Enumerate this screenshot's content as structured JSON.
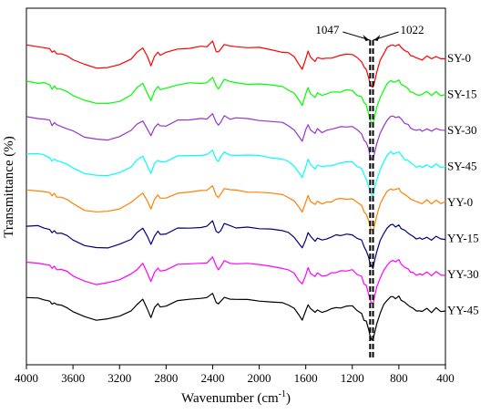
{
  "chart_data": {
    "type": "line",
    "title": "",
    "xlabel_main": "Wavenumber (cm",
    "xlabel_sup": "-1",
    "xlabel_close": ")",
    "ylabel": "Transmittance (%)",
    "xlim": [
      4000,
      400
    ],
    "x_reversed": true,
    "xticks": [
      4000,
      3600,
      3200,
      2800,
      2400,
      2000,
      1600,
      1200,
      800,
      400
    ],
    "xtick_labels": [
      "4000",
      "3600",
      "3200",
      "2800",
      "2400",
      "2000",
      "1600",
      "1200",
      "800",
      "400"
    ],
    "grid": false,
    "legend": "inline-right",
    "annotations": [
      {
        "text": "1047",
        "x": 1047,
        "style": "dashed-vertical"
      },
      {
        "text": "1022",
        "x": 1022,
        "style": "dashed-vertical"
      }
    ],
    "series": [
      {
        "name": "SY-0",
        "color": "#ff0000",
        "offset": 0
      },
      {
        "name": "SY-15",
        "color": "#00ff00",
        "offset": 1
      },
      {
        "name": "SY-30",
        "color": "#9933cc",
        "offset": 2
      },
      {
        "name": "SY-45",
        "color": "#00ffff",
        "offset": 3
      },
      {
        "name": "YY-0",
        "color": "#ff8000",
        "offset": 4
      },
      {
        "name": "YY-15",
        "color": "#000080",
        "offset": 5
      },
      {
        "name": "YY-30",
        "color": "#ff00ff",
        "offset": 6
      },
      {
        "name": "YY-45",
        "color": "#000000",
        "offset": 7
      }
    ],
    "spectrum_profile": {
      "x": [
        4000,
        3900,
        3850,
        3800,
        3780,
        3760,
        3740,
        3700,
        3650,
        3600,
        3500,
        3400,
        3300,
        3200,
        3100,
        3050,
        3000,
        2960,
        2930,
        2900,
        2870,
        2850,
        2800,
        2700,
        2600,
        2500,
        2450,
        2400,
        2370,
        2350,
        2330,
        2300,
        2250,
        2200,
        2100,
        2000,
        1900,
        1800,
        1750,
        1700,
        1660,
        1630,
        1600,
        1580,
        1560,
        1520,
        1500,
        1460,
        1420,
        1380,
        1340,
        1300,
        1250,
        1200,
        1160,
        1120,
        1100,
        1080,
        1060,
        1047,
        1035,
        1022,
        1010,
        990,
        960,
        930,
        900,
        870,
        850,
        830,
        800,
        780,
        750,
        720,
        700,
        680,
        650,
        620,
        600,
        560,
        520,
        480,
        440,
        400
      ],
      "y": [
        0.0,
        0.05,
        0.15,
        0.25,
        0.55,
        0.35,
        0.6,
        0.65,
        0.8,
        1.1,
        1.55,
        1.75,
        1.7,
        1.5,
        1.0,
        0.55,
        0.2,
        0.9,
        1.5,
        0.8,
        0.45,
        0.7,
        0.6,
        0.25,
        0.15,
        0.1,
        0.05,
        -0.3,
        0.4,
        0.55,
        0.3,
        -0.1,
        0.05,
        0.1,
        0.15,
        0.2,
        0.3,
        0.45,
        0.6,
        0.9,
        1.4,
        1.8,
        1.0,
        0.5,
        0.9,
        1.2,
        0.9,
        1.1,
        1.0,
        0.9,
        0.8,
        0.75,
        0.7,
        0.7,
        1.0,
        1.2,
        1.7,
        1.9,
        2.5,
        3.0,
        3.2,
        3.3,
        2.8,
        2.0,
        1.2,
        0.6,
        0.2,
        -0.1,
        -0.05,
        0.05,
        -0.1,
        0.15,
        0.4,
        0.6,
        0.75,
        0.85,
        1.0,
        1.0,
        1.05,
        0.85,
        1.1,
        0.85,
        1.05,
        1.0
      ]
    }
  }
}
